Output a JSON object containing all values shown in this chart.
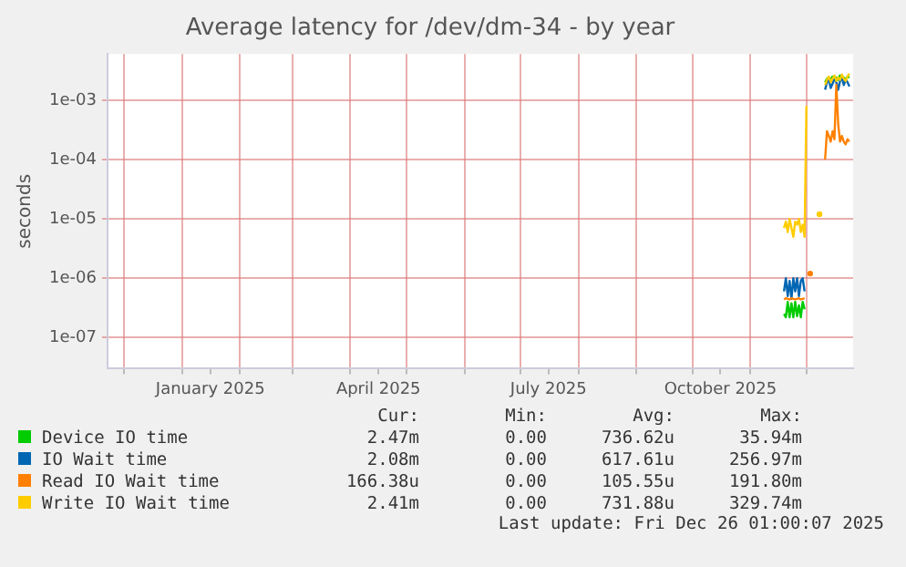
{
  "chart_data": {
    "type": "line",
    "title": "Average latency for /dev/dm-34 - by year",
    "ylabel": "seconds",
    "log": "y",
    "grid": true,
    "legend": "bottom",
    "marker": "none",
    "line_style": "solid",
    "xlim": [
      "2024-11-22",
      "2025-12-26"
    ],
    "xticks": [
      {
        "value": "2024-12-01",
        "label": null
      },
      {
        "value": "2025-01-01",
        "label": null
      },
      {
        "value": "2025-01-16",
        "label": "January 2025"
      },
      {
        "value": "2025-02-01",
        "label": null
      },
      {
        "value": "2025-03-01",
        "label": null
      },
      {
        "value": "2025-04-01",
        "label": null
      },
      {
        "value": "2025-04-16",
        "label": "April 2025"
      },
      {
        "value": "2025-05-01",
        "label": null
      },
      {
        "value": "2025-06-01",
        "label": null
      },
      {
        "value": "2025-07-01",
        "label": null
      },
      {
        "value": "2025-07-16",
        "label": "July 2025"
      },
      {
        "value": "2025-08-01",
        "label": null
      },
      {
        "value": "2025-09-01",
        "label": null
      },
      {
        "value": "2025-10-01",
        "label": null
      },
      {
        "value": "2025-10-16",
        "label": "October 2025"
      },
      {
        "value": "2025-11-01",
        "label": null
      },
      {
        "value": "2025-12-01",
        "label": null
      }
    ],
    "ylim": [
      3e-08,
      0.006
    ],
    "yticks": [
      {
        "value": 1e-07,
        "label": "1e-07"
      },
      {
        "value": 1e-06,
        "label": "1e-06"
      },
      {
        "value": 1e-05,
        "label": "1e-05"
      },
      {
        "value": 0.0001,
        "label": "1e-04"
      },
      {
        "value": 0.001,
        "label": "1e-03"
      }
    ],
    "x": [
      "2025-11-19",
      "2025-11-20",
      "2025-11-21",
      "2025-11-22",
      "2025-11-23",
      "2025-11-24",
      "2025-11-25",
      "2025-11-26",
      "2025-11-27",
      "2025-11-28",
      "2025-11-29",
      "2025-11-30",
      "2025-12-01",
      "2025-12-02",
      "2025-12-03",
      "2025-12-04",
      "2025-12-05",
      "2025-12-06",
      "2025-12-07",
      "2025-12-08",
      "2025-12-09",
      "2025-12-10",
      "2025-12-11",
      "2025-12-12",
      "2025-12-13",
      "2025-12-14",
      "2025-12-15",
      "2025-12-16",
      "2025-12-17",
      "2025-12-18",
      "2025-12-19",
      "2025-12-20",
      "2025-12-21",
      "2025-12-22",
      "2025-12-23",
      "2025-12-24"
    ],
    "series": [
      {
        "name": "Device IO time",
        "color": "#00cc00",
        "values": [
          2.5e-07,
          2.2e-07,
          4e-07,
          2.2e-07,
          3.8e-07,
          2.2e-07,
          4e-07,
          2.3e-07,
          3.5e-07,
          2.2e-07,
          4e-07,
          3e-07,
          null,
          null,
          null,
          null,
          null,
          null,
          null,
          null,
          null,
          null,
          0.002,
          0.0023,
          0.0024,
          0.0022,
          0.0025,
          0.0023,
          0.0024,
          0.0022,
          0.0026,
          0.0023,
          0.0024,
          0.0022,
          0.0025,
          0.0024
        ]
      },
      {
        "name": "IO Wait time",
        "color": "#0066b3",
        "values": [
          6e-07,
          1e-06,
          5e-07,
          9e-07,
          4.5e-07,
          1e-06,
          6e-07,
          1e-06,
          5e-07,
          9e-07,
          1e-06,
          6e-07,
          null,
          null,
          null,
          null,
          null,
          null,
          null,
          null,
          null,
          null,
          0.0015,
          0.002,
          0.0022,
          0.0016,
          0.0019,
          0.0023,
          0.002,
          0.0015,
          0.0021,
          0.0024,
          0.0018,
          0.0022,
          0.002,
          0.0017
        ]
      },
      {
        "name": "Read IO Wait time",
        "color": "#ff8000",
        "values": [
          4.4e-07,
          4.6e-07,
          4.5e-07,
          4.4e-07,
          4.6e-07,
          4.5e-07,
          4.4e-07,
          4.5e-07,
          4.6e-07,
          4.4e-07,
          4.5e-07,
          4.6e-07,
          null,
          null,
          1.2e-06,
          null,
          null,
          null,
          null,
          null,
          null,
          null,
          0.0001,
          0.0003,
          0.00025,
          0.0002,
          0.0003,
          0.00022,
          0.0018,
          0.0004,
          0.0002,
          0.00025,
          0.0002,
          0.00018,
          0.00022,
          0.0002
        ]
      },
      {
        "name": "Write IO Wait time",
        "color": "#ffcc00",
        "values": [
          7e-06,
          9e-06,
          6e-06,
          1e-05,
          7e-06,
          5e-06,
          9e-06,
          8e-06,
          1e-05,
          6e-06,
          8e-06,
          5e-06,
          0.0008,
          null,
          null,
          null,
          null,
          null,
          null,
          1.2e-05,
          null,
          null,
          0.0018,
          0.0022,
          0.0025,
          0.002,
          0.0023,
          0.0026,
          0.0021,
          0.0024,
          0.0022,
          0.0027,
          0.0023,
          0.0021,
          0.0025,
          0.0028
        ]
      }
    ],
    "annotations": [
      "Cur:",
      "Min:",
      "Avg:",
      "Max:",
      "2.47m",
      "0.00",
      "736.62u",
      "35.94m",
      "2.08m",
      "0.00",
      "617.61u",
      "256.97m",
      "166.38u",
      "0.00",
      "105.55u",
      "191.80m",
      "2.41m",
      "0.00",
      "731.88u",
      "329.74m",
      "Last update: Fri Dec 26 01:00:07 2025"
    ]
  }
}
